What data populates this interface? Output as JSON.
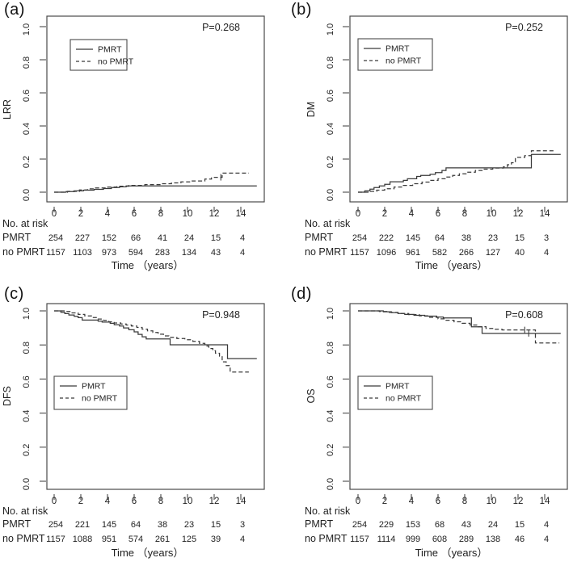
{
  "figure": {
    "panels": [
      {
        "label": "(a)"
      },
      {
        "label": "(b)"
      },
      {
        "label": "(c)"
      },
      {
        "label": "(d)"
      }
    ]
  },
  "chart_data": [
    {
      "type": "line",
      "subtype": "kaplan-meier-step",
      "panel": "a",
      "p_value_annotation": "P=0.268",
      "xlabel": "Time （years）",
      "ylabel": "LRR",
      "xlim": [
        0,
        15.5
      ],
      "ylim": [
        0.0,
        1.0
      ],
      "x_ticks": [
        "0",
        "2",
        "4",
        "6",
        "8",
        "10",
        "12",
        "14"
      ],
      "y_ticks": [
        "0.0",
        "0.2",
        "0.4",
        "0.6",
        "0.8",
        "1.0"
      ],
      "legend_entries": [
        {
          "label": "PMRT",
          "line_style": "solid"
        },
        {
          "label": "no PMRT",
          "line_style": "dashed"
        }
      ],
      "series": [
        {
          "name": "PMRT",
          "line_style": "solid",
          "step_points": [
            [
              0,
              0
            ],
            [
              0.9,
              0.004
            ],
            [
              1.5,
              0.008
            ],
            [
              2.2,
              0.012
            ],
            [
              3.0,
              0.017
            ],
            [
              3.7,
              0.022
            ],
            [
              4.3,
              0.028
            ],
            [
              4.9,
              0.032
            ],
            [
              5.4,
              0.038
            ],
            [
              15.2,
              0.038
            ]
          ],
          "censor_marks": []
        },
        {
          "name": "no PMRT",
          "line_style": "dashed",
          "step_points": [
            [
              0,
              0
            ],
            [
              1.0,
              0.005
            ],
            [
              1.9,
              0.013
            ],
            [
              2.5,
              0.02
            ],
            [
              3.1,
              0.026
            ],
            [
              3.9,
              0.031
            ],
            [
              4.7,
              0.036
            ],
            [
              5.6,
              0.041
            ],
            [
              6.8,
              0.046
            ],
            [
              8.0,
              0.051
            ],
            [
              8.8,
              0.056
            ],
            [
              9.5,
              0.062
            ],
            [
              10.3,
              0.068
            ],
            [
              11.3,
              0.079
            ],
            [
              11.8,
              0.09
            ],
            [
              12.6,
              0.115
            ],
            [
              14.6,
              0.115
            ]
          ],
          "censor_marks": [
            [
              12.5,
              0.09
            ]
          ]
        }
      ],
      "risk_table": {
        "header": "No. at risk",
        "time_points": [
          "0",
          "2",
          "4",
          "6",
          "8",
          "10",
          "12",
          "14"
        ],
        "rows": [
          {
            "name": "PMRT",
            "values": [
              "254",
              "227",
              "152",
              "66",
              "41",
              "24",
              "15",
              "4"
            ]
          },
          {
            "name": "no PMRT",
            "values": [
              "1157",
              "1103",
              "973",
              "594",
              "283",
              "134",
              "43",
              "4"
            ]
          }
        ]
      }
    },
    {
      "type": "line",
      "subtype": "kaplan-meier-step",
      "panel": "b",
      "p_value_annotation": "P=0.252",
      "xlabel": "Time （years）",
      "ylabel": "DM",
      "xlim": [
        0,
        15.5
      ],
      "ylim": [
        0.0,
        1.0
      ],
      "x_ticks": [
        "0",
        "2",
        "4",
        "6",
        "8",
        "10",
        "12",
        "14"
      ],
      "y_ticks": [
        "0.0",
        "0.2",
        "0.4",
        "0.6",
        "0.8",
        "1.0"
      ],
      "legend_entries": [
        {
          "label": "PMRT",
          "line_style": "solid"
        },
        {
          "label": "no PMRT",
          "line_style": "dashed"
        }
      ],
      "series": [
        {
          "name": "PMRT",
          "line_style": "solid",
          "step_points": [
            [
              0,
              0
            ],
            [
              0.5,
              0.008
            ],
            [
              0.9,
              0.018
            ],
            [
              1.2,
              0.028
            ],
            [
              1.6,
              0.038
            ],
            [
              2.0,
              0.048
            ],
            [
              2.4,
              0.063
            ],
            [
              3.4,
              0.071
            ],
            [
              3.7,
              0.081
            ],
            [
              4.4,
              0.095
            ],
            [
              4.7,
              0.101
            ],
            [
              5.4,
              0.108
            ],
            [
              5.8,
              0.118
            ],
            [
              6.3,
              0.131
            ],
            [
              6.6,
              0.147
            ],
            [
              13.0,
              0.228
            ],
            [
              15.2,
              0.228
            ]
          ],
          "censor_marks": []
        },
        {
          "name": "no PMRT",
          "line_style": "dashed",
          "step_points": [
            [
              0,
              0
            ],
            [
              0.8,
              0.005
            ],
            [
              1.4,
              0.012
            ],
            [
              2.0,
              0.021
            ],
            [
              2.7,
              0.031
            ],
            [
              3.4,
              0.041
            ],
            [
              4.1,
              0.051
            ],
            [
              4.8,
              0.061
            ],
            [
              5.4,
              0.071
            ],
            [
              6.0,
              0.081
            ],
            [
              6.6,
              0.091
            ],
            [
              7.1,
              0.101
            ],
            [
              7.6,
              0.111
            ],
            [
              8.1,
              0.121
            ],
            [
              8.8,
              0.131
            ],
            [
              9.4,
              0.139
            ],
            [
              10.1,
              0.146
            ],
            [
              10.9,
              0.153
            ],
            [
              11.2,
              0.166
            ],
            [
              11.5,
              0.178
            ],
            [
              11.8,
              0.21
            ],
            [
              12.5,
              0.221
            ],
            [
              13.0,
              0.25
            ],
            [
              14.7,
              0.25
            ]
          ],
          "censor_marks": []
        }
      ],
      "risk_table": {
        "header": "No. at risk",
        "time_points": [
          "0",
          "2",
          "4",
          "6",
          "8",
          "10",
          "12",
          "14"
        ],
        "rows": [
          {
            "name": "PMRT",
            "values": [
              "254",
              "222",
              "145",
              "64",
              "38",
              "23",
              "15",
              "3"
            ]
          },
          {
            "name": "no PMRT",
            "values": [
              "1157",
              "1096",
              "961",
              "582",
              "266",
              "127",
              "40",
              "4"
            ]
          }
        ]
      }
    },
    {
      "type": "line",
      "subtype": "kaplan-meier-step",
      "panel": "c",
      "p_value_annotation": "P=0.948",
      "xlabel": "Time （years）",
      "ylabel": "DFS",
      "xlim": [
        0,
        15.5
      ],
      "ylim": [
        0.0,
        1.0
      ],
      "x_ticks": [
        "0",
        "2",
        "4",
        "6",
        "8",
        "10",
        "12",
        "14"
      ],
      "y_ticks": [
        "0.0",
        "0.2",
        "0.4",
        "0.6",
        "0.8",
        "1.0"
      ],
      "legend_entries": [
        {
          "label": "PMRT",
          "line_style": "solid"
        },
        {
          "label": "no PMRT",
          "line_style": "dashed"
        }
      ],
      "series": [
        {
          "name": "PMRT",
          "line_style": "solid",
          "step_points": [
            [
              0,
              1.0
            ],
            [
              0.5,
              0.992
            ],
            [
              0.8,
              0.984
            ],
            [
              1.1,
              0.976
            ],
            [
              1.5,
              0.968
            ],
            [
              1.8,
              0.96
            ],
            [
              2.1,
              0.946
            ],
            [
              3.3,
              0.94
            ],
            [
              3.6,
              0.934
            ],
            [
              4.2,
              0.927
            ],
            [
              4.5,
              0.919
            ],
            [
              4.9,
              0.911
            ],
            [
              5.2,
              0.9
            ],
            [
              5.6,
              0.889
            ],
            [
              6.0,
              0.877
            ],
            [
              6.3,
              0.862
            ],
            [
              6.6,
              0.848
            ],
            [
              6.9,
              0.835
            ],
            [
              8.7,
              0.801
            ],
            [
              13.0,
              0.72
            ],
            [
              15.2,
              0.72
            ]
          ],
          "censor_marks": []
        },
        {
          "name": "no PMRT",
          "line_style": "dashed",
          "step_points": [
            [
              0,
              1.0
            ],
            [
              0.8,
              0.996
            ],
            [
              1.3,
              0.988
            ],
            [
              1.8,
              0.979
            ],
            [
              2.3,
              0.97
            ],
            [
              2.8,
              0.961
            ],
            [
              3.2,
              0.952
            ],
            [
              3.7,
              0.944
            ],
            [
              4.1,
              0.936
            ],
            [
              4.5,
              0.929
            ],
            [
              5.0,
              0.923
            ],
            [
              5.4,
              0.917
            ],
            [
              5.8,
              0.911
            ],
            [
              6.2,
              0.903
            ],
            [
              6.6,
              0.893
            ],
            [
              7.0,
              0.883
            ],
            [
              7.4,
              0.873
            ],
            [
              7.8,
              0.863
            ],
            [
              8.2,
              0.853
            ],
            [
              8.6,
              0.845
            ],
            [
              9.2,
              0.838
            ],
            [
              9.8,
              0.831
            ],
            [
              10.4,
              0.821
            ],
            [
              10.9,
              0.809
            ],
            [
              11.3,
              0.794
            ],
            [
              11.6,
              0.779
            ],
            [
              11.9,
              0.766
            ],
            [
              12.1,
              0.751
            ],
            [
              12.4,
              0.734
            ],
            [
              12.6,
              0.701
            ],
            [
              12.9,
              0.679
            ],
            [
              13.2,
              0.641
            ],
            [
              14.6,
              0.641
            ]
          ],
          "censor_marks": []
        }
      ],
      "risk_table": {
        "header": "No. at risk",
        "time_points": [
          "0",
          "2",
          "4",
          "6",
          "8",
          "10",
          "12",
          "14"
        ],
        "rows": [
          {
            "name": "PMRT",
            "values": [
              "254",
              "221",
              "145",
              "64",
              "38",
              "23",
              "15",
              "3"
            ]
          },
          {
            "name": "no PMRT",
            "values": [
              "1157",
              "1088",
              "951",
              "574",
              "261",
              "125",
              "39",
              "4"
            ]
          }
        ]
      }
    },
    {
      "type": "line",
      "subtype": "kaplan-meier-step",
      "panel": "d",
      "p_value_annotation": "P=0.608",
      "xlabel": "Time （years）",
      "ylabel": "OS",
      "xlim": [
        0,
        15.5
      ],
      "ylim": [
        0.0,
        1.0
      ],
      "x_ticks": [
        "0",
        "2",
        "4",
        "6",
        "8",
        "10",
        "12",
        "14"
      ],
      "y_ticks": [
        "0.0",
        "0.2",
        "0.4",
        "0.6",
        "0.8",
        "1.0"
      ],
      "legend_entries": [
        {
          "label": "PMRT",
          "line_style": "solid"
        },
        {
          "label": "no PMRT",
          "line_style": "dashed"
        }
      ],
      "series": [
        {
          "name": "PMRT",
          "line_style": "solid",
          "step_points": [
            [
              0,
              1.0
            ],
            [
              1.9,
              0.995
            ],
            [
              2.5,
              0.99
            ],
            [
              3.0,
              0.985
            ],
            [
              3.5,
              0.979
            ],
            [
              4.2,
              0.974
            ],
            [
              5.0,
              0.969
            ],
            [
              5.9,
              0.964
            ],
            [
              6.4,
              0.959
            ],
            [
              8.5,
              0.906
            ],
            [
              9.3,
              0.868
            ],
            [
              15.2,
              0.868
            ]
          ],
          "censor_marks": [
            [
              12.8,
              0.868
            ]
          ]
        },
        {
          "name": "no PMRT",
          "line_style": "dashed",
          "step_points": [
            [
              0,
              1.0
            ],
            [
              1.6,
              0.996
            ],
            [
              2.3,
              0.991
            ],
            [
              3.0,
              0.985
            ],
            [
              3.8,
              0.978
            ],
            [
              4.6,
              0.971
            ],
            [
              5.3,
              0.962
            ],
            [
              6.0,
              0.953
            ],
            [
              6.6,
              0.945
            ],
            [
              7.2,
              0.936
            ],
            [
              7.8,
              0.927
            ],
            [
              8.4,
              0.917
            ],
            [
              9.0,
              0.907
            ],
            [
              9.6,
              0.897
            ],
            [
              10.2,
              0.892
            ],
            [
              10.8,
              0.888
            ],
            [
              13.3,
              0.812
            ],
            [
              15.1,
              0.812
            ]
          ],
          "censor_marks": [
            [
              12.5,
              0.888
            ]
          ]
        }
      ],
      "risk_table": {
        "header": "No. at risk",
        "time_points": [
          "0",
          "2",
          "4",
          "6",
          "8",
          "10",
          "12",
          "14"
        ],
        "rows": [
          {
            "name": "PMRT",
            "values": [
              "254",
              "229",
              "153",
              "68",
              "43",
              "24",
              "15",
              "4"
            ]
          },
          {
            "name": "no PMRT",
            "values": [
              "1157",
              "1114",
              "999",
              "608",
              "289",
              "138",
              "46",
              "4"
            ]
          }
        ]
      }
    }
  ],
  "colors": {
    "background": "#ffffff",
    "line": "#3a3a3a",
    "axis": "#4a4a4a",
    "text": "#1f1f1f"
  }
}
